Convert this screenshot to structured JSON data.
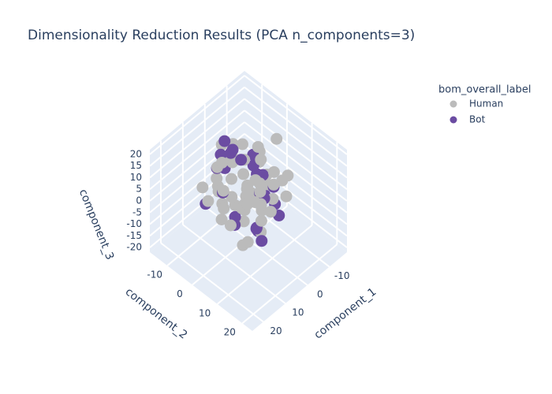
{
  "chart_data": {
    "type": "scatter3d",
    "title": "Dimensionality Reduction Results (PCA n_components=3)",
    "legend_title": "bom_overall_label",
    "xaxis": {
      "title": "component_1"
    },
    "yaxis": {
      "title": "component_2"
    },
    "zaxis": {
      "title": "component_3"
    },
    "xlim": [
      -18,
      25
    ],
    "xticks": [
      -10,
      0,
      10,
      20
    ],
    "ylim": [
      -17,
      24
    ],
    "yticks": [
      -10,
      0,
      10,
      20
    ],
    "zlim": [
      -22,
      22
    ],
    "zticks": [
      -20,
      -15,
      -10,
      -5,
      0,
      5,
      10,
      15,
      20
    ],
    "grid": true,
    "series": [
      {
        "name": "Human",
        "color": "#bbbbbb",
        "x": [
          -8,
          -5,
          -2,
          1,
          4,
          7,
          10,
          -10,
          -6,
          -3,
          0,
          3,
          6,
          9,
          12,
          -7,
          -4,
          -1,
          2,
          5,
          8,
          11,
          -9,
          -5,
          0,
          4,
          8,
          -11,
          -3,
          2,
          6,
          10,
          -6,
          -2,
          3,
          7,
          -8,
          -1,
          5,
          9,
          -4,
          1,
          6,
          -7,
          0,
          4,
          -12,
          -9,
          13,
          11,
          -3,
          2,
          7,
          -5,
          1,
          8,
          -10,
          3,
          -2,
          5
        ],
        "y": [
          -9,
          -6,
          -3,
          0,
          3,
          6,
          9,
          -4,
          -1,
          2,
          5,
          8,
          -7,
          -10,
          1,
          4,
          7,
          -2,
          -8,
          10,
          -5,
          3,
          6,
          0,
          -6,
          9,
          -3,
          2,
          -9,
          5,
          -1,
          7,
          -11,
          4,
          8,
          -4,
          1,
          -7,
          3,
          11,
          -2,
          6,
          -5,
          10,
          0,
          -8,
          5,
          -3,
          2,
          -6,
          8,
          -10,
          4,
          1,
          -4,
          7,
          -1,
          12,
          -12,
          3
        ],
        "z": [
          5,
          -3,
          8,
          -6,
          2,
          10,
          -8,
          0,
          12,
          -4,
          6,
          -10,
          3,
          -1,
          9,
          -7,
          4,
          -12,
          7,
          -2,
          11,
          -5,
          1,
          -9,
          6,
          3,
          -3,
          14,
          -6,
          9,
          0,
          -11,
          5,
          -8,
          2,
          13,
          -4,
          7,
          -1,
          10,
          -7,
          4,
          -13,
          8,
          1,
          -5,
          -9,
          6,
          3,
          -2,
          11,
          -6,
          0,
          9,
          -10,
          5,
          -3,
          2,
          7,
          -8
        ]
      },
      {
        "name": "Bot",
        "color": "#6b4ca2",
        "x": [
          -6,
          -2,
          3,
          8,
          -4,
          1,
          6,
          10,
          -8,
          0,
          4,
          -3,
          7,
          2,
          -5,
          9,
          -1,
          5,
          -7,
          3,
          11,
          -2,
          6,
          0,
          -9
        ],
        "y": [
          -3,
          5,
          -8,
          2,
          7,
          -5,
          9,
          -1,
          4,
          -9,
          1,
          10,
          -6,
          6,
          -2,
          3,
          -10,
          8,
          0,
          -4,
          -7,
          2,
          11,
          5,
          -1
        ],
        "z": [
          7,
          -2,
          10,
          -8,
          3,
          13,
          -5,
          5,
          -10,
          1,
          16,
          -6,
          9,
          -12,
          4,
          -3,
          11,
          -7,
          0,
          14,
          -4,
          6,
          -9,
          2,
          -11
        ]
      }
    ]
  }
}
